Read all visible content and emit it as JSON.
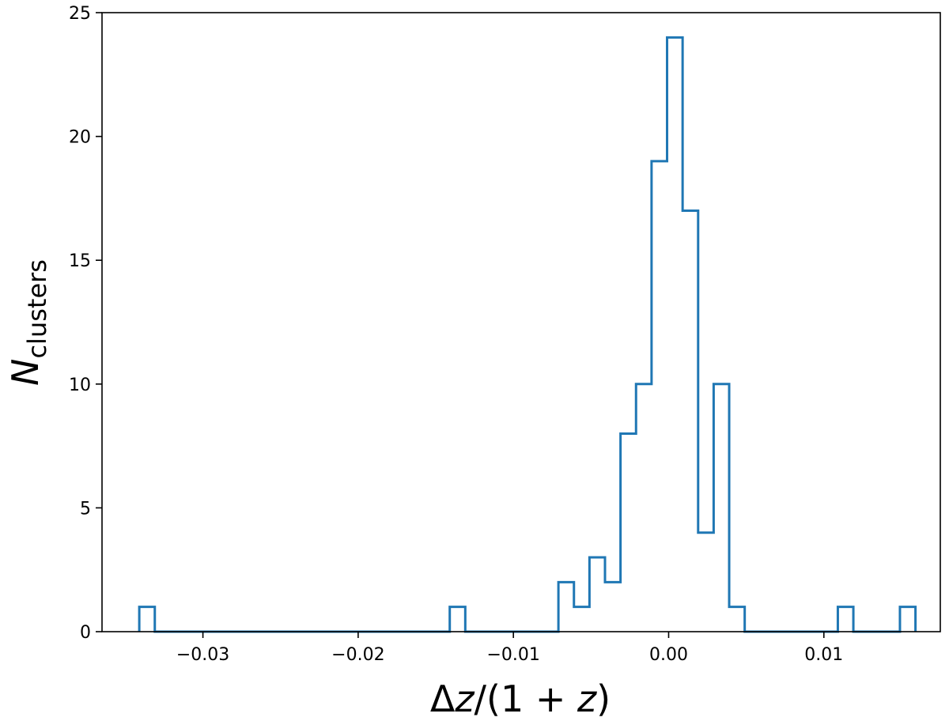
{
  "chart_data": {
    "type": "histogram",
    "xlabel": "Δz/(1 + z)",
    "ylabel": {
      "main": "N",
      "subscript": "clusters"
    },
    "xlim": [
      -0.0365,
      0.0175
    ],
    "ylim": [
      0,
      25
    ],
    "x_ticks": [
      {
        "value": -0.03,
        "label": "−0.03"
      },
      {
        "value": -0.02,
        "label": "−0.02"
      },
      {
        "value": -0.01,
        "label": "−0.01"
      },
      {
        "value": 0.0,
        "label": "0.00"
      },
      {
        "value": 0.01,
        "label": "0.01"
      }
    ],
    "y_ticks": [
      {
        "value": 0,
        "label": "0"
      },
      {
        "value": 5,
        "label": "5"
      },
      {
        "value": 10,
        "label": "10"
      },
      {
        "value": 15,
        "label": "15"
      },
      {
        "value": 20,
        "label": "20"
      },
      {
        "value": 25,
        "label": "25"
      }
    ],
    "bin_start": -0.0341,
    "bin_width": 0.001,
    "counts": [
      1,
      0,
      0,
      0,
      0,
      0,
      0,
      0,
      0,
      0,
      0,
      0,
      0,
      0,
      0,
      0,
      0,
      0,
      0,
      0,
      1,
      0,
      0,
      0,
      0,
      0,
      0,
      2,
      1,
      3,
      2,
      8,
      10,
      19,
      24,
      17,
      4,
      10,
      1,
      0,
      0,
      0,
      0,
      0,
      0,
      1,
      0,
      0,
      0,
      1
    ],
    "color": "#1f77b4",
    "histtype": "step",
    "grid": false
  }
}
